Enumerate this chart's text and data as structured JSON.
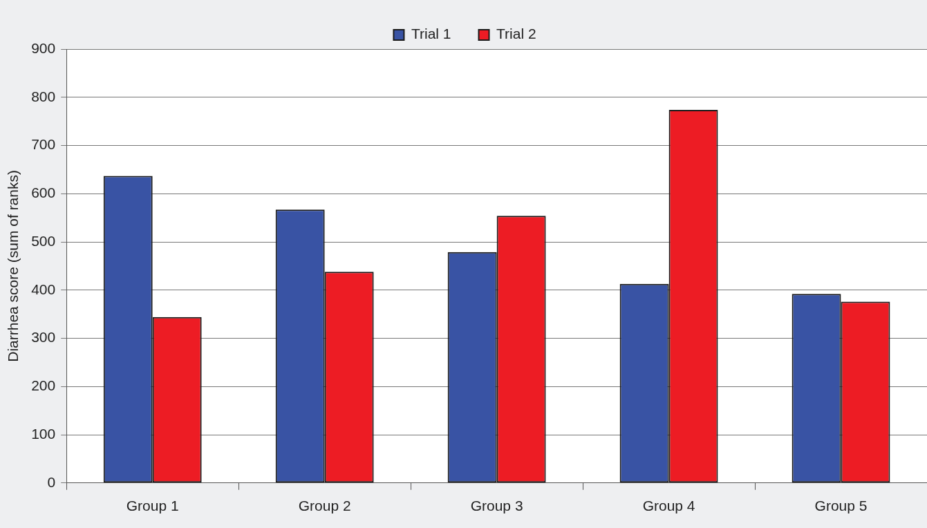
{
  "chart_data": {
    "type": "bar",
    "ylabel": "Diarrhea score (sum of ranks)",
    "categories": [
      "Group 1",
      "Group 2",
      "Group 3",
      "Group 4",
      "Group 5"
    ],
    "series": [
      {
        "name": "Trial 1",
        "color": "#3953a4",
        "values": [
          637,
          567,
          479,
          413,
          392
        ]
      },
      {
        "name": "Trial 2",
        "color": "#ed1c24",
        "values": [
          344,
          438,
          554,
          774,
          376
        ]
      }
    ],
    "ylim": [
      0,
      900
    ],
    "yticks": [
      0,
      100,
      200,
      300,
      400,
      500,
      600,
      700,
      800,
      900
    ],
    "grid": "y",
    "legend": "top"
  }
}
